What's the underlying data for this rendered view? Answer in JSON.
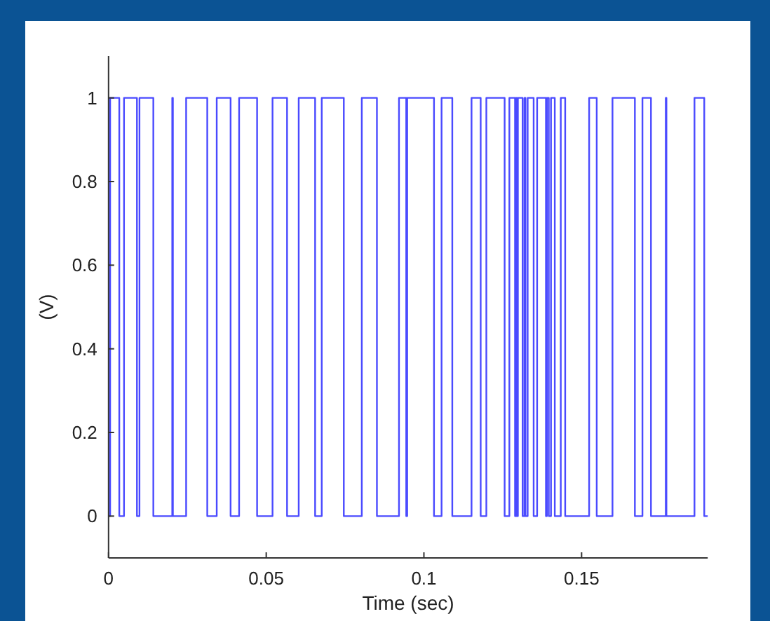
{
  "chart_data": {
    "type": "step",
    "xlabel": "Time (sec)",
    "ylabel": "(V)",
    "x": [
      0,
      0.0005,
      0.0034,
      0.0049,
      0.009,
      0.0098,
      0.0142,
      0.0202,
      0.0204,
      0.0246,
      0.0313,
      0.0343,
      0.0387,
      0.0414,
      0.0471,
      0.052,
      0.0566,
      0.0603,
      0.0655,
      0.0676,
      0.0746,
      0.0803,
      0.0851,
      0.0921,
      0.0944,
      0.0947,
      0.1032,
      0.1056,
      0.109,
      0.1151,
      0.118,
      0.1198,
      0.1256,
      0.1271,
      0.1289,
      0.1292,
      0.1295,
      0.1298,
      0.1313,
      0.1319,
      0.1322,
      0.1329,
      0.1348,
      0.1359,
      0.1387,
      0.139,
      0.1396,
      0.1403,
      0.1415,
      0.1434,
      0.1448,
      0.1524,
      0.1548,
      0.1598,
      0.1669,
      0.1693,
      0.172,
      0.1767,
      0.1769,
      0.1858,
      0.1889,
      0.19
    ],
    "series": [
      {
        "color": "#4a4aff",
        "values": [
          0,
          1,
          0,
          1,
          0,
          1,
          0,
          1,
          0,
          1,
          0,
          1,
          0,
          1,
          0,
          1,
          0,
          1,
          0,
          1,
          0,
          1,
          0,
          1,
          0,
          1,
          0,
          1,
          0,
          1,
          0,
          1,
          0,
          1,
          0,
          1,
          0,
          1,
          0,
          1,
          0,
          1,
          0,
          1,
          0,
          1,
          0,
          1,
          0,
          1,
          0,
          1,
          0,
          1,
          0,
          1,
          0,
          1,
          0,
          1,
          0,
          0
        ]
      }
    ],
    "xlim": [
      0,
      0.19
    ],
    "xticks": [
      0,
      0.05,
      0.1,
      0.15
    ],
    "ylim": [
      -0.1,
      1.1
    ],
    "yticks": [
      0,
      0.2,
      0.4,
      0.6,
      0.8,
      1
    ],
    "grid": false,
    "marker": "none",
    "line_style": "solid"
  }
}
